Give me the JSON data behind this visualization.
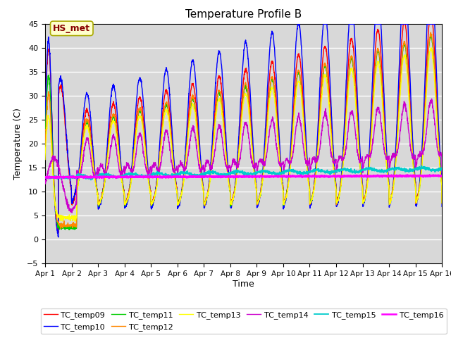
{
  "title": "Temperature Profile B",
  "xlabel": "Time",
  "ylabel": "Temperature (C)",
  "ylim": [
    -5,
    45
  ],
  "yticks": [
    -5,
    0,
    5,
    10,
    15,
    20,
    25,
    30,
    35,
    40,
    45
  ],
  "series_colors": {
    "TC_temp09": "#ff0000",
    "TC_temp10": "#0000ff",
    "TC_temp11": "#00cc00",
    "TC_temp12": "#ff8800",
    "TC_temp13": "#ffff00",
    "TC_temp14": "#cc00cc",
    "TC_temp15": "#00cccc",
    "TC_temp16": "#ff00ff"
  },
  "annotation_text": "HS_met",
  "annotation_color": "#880000",
  "annotation_bg": "#ffffcc",
  "annotation_edge": "#aaaa00",
  "plot_bg_color": "#d8d8d8",
  "fig_bg_color": "#ffffff",
  "grid_color": "#ffffff",
  "n_days": 15,
  "points_per_day": 144,
  "figsize": [
    6.4,
    4.8
  ],
  "dpi": 100
}
